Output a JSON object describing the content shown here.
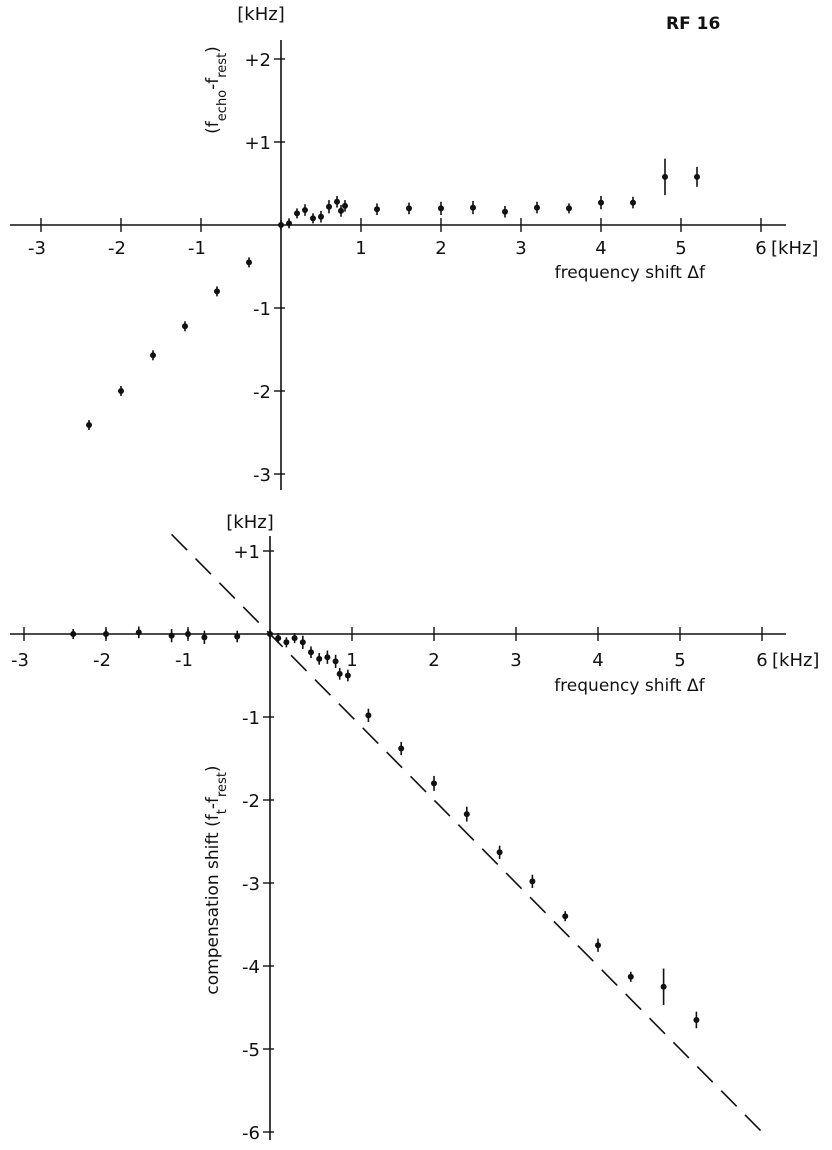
{
  "figure_label": "RF 16",
  "chart_data": [
    {
      "type": "scatter",
      "xlabel": "frequency shift Δf",
      "x_unit": "[kHz]",
      "ylabel": "(f_echo - f_rest)",
      "ylabel_parts": {
        "open": "(f",
        "sub1": "echo",
        "mid": "-f",
        "sub2": "rest",
        "close": ")"
      },
      "y_unit": "[kHz]",
      "xlim": [
        -3,
        6
      ],
      "ylim": [
        -3,
        2.3
      ],
      "x_ticks": [
        {
          "value": -3,
          "label": "-3"
        },
        {
          "value": -2,
          "label": "-2"
        },
        {
          "value": -1,
          "label": "-1"
        },
        {
          "value": 1,
          "label": "1"
        },
        {
          "value": 2,
          "label": "2"
        },
        {
          "value": 3,
          "label": "3"
        },
        {
          "value": 4,
          "label": "4"
        },
        {
          "value": 5,
          "label": "5"
        },
        {
          "value": 6,
          "label": "6"
        }
      ],
      "y_ticks": [
        {
          "value": 2,
          "label": "+2"
        },
        {
          "value": 1,
          "label": "+1"
        },
        {
          "value": -1,
          "label": "-1"
        },
        {
          "value": -2,
          "label": "-2"
        },
        {
          "value": -3,
          "label": "-3"
        }
      ],
      "points": [
        {
          "x": -2.4,
          "y": -2.41,
          "err": 0.04
        },
        {
          "x": -2.0,
          "y": -2.0,
          "err": 0.04
        },
        {
          "x": -1.6,
          "y": -1.57,
          "err": 0.04
        },
        {
          "x": -1.2,
          "y": -1.22,
          "err": 0.06
        },
        {
          "x": -0.8,
          "y": -0.8,
          "err": 0.05
        },
        {
          "x": -0.4,
          "y": -0.45,
          "err": 0.04
        },
        {
          "x": 0.0,
          "y": 0.0,
          "err": 0.03
        },
        {
          "x": 0.1,
          "y": 0.02,
          "err": 0.03
        },
        {
          "x": 0.2,
          "y": 0.14,
          "err": 0.05
        },
        {
          "x": 0.3,
          "y": 0.18,
          "err": 0.07
        },
        {
          "x": 0.4,
          "y": 0.08,
          "err": 0.06
        },
        {
          "x": 0.5,
          "y": 0.1,
          "err": 0.07
        },
        {
          "x": 0.6,
          "y": 0.22,
          "err": 0.08
        },
        {
          "x": 0.7,
          "y": 0.28,
          "err": 0.07
        },
        {
          "x": 0.75,
          "y": 0.17,
          "err": 0.07
        },
        {
          "x": 0.8,
          "y": 0.23,
          "err": 0.07
        },
        {
          "x": 1.2,
          "y": 0.19,
          "err": 0.07
        },
        {
          "x": 1.6,
          "y": 0.2,
          "err": 0.07
        },
        {
          "x": 2.0,
          "y": 0.2,
          "err": 0.08
        },
        {
          "x": 2.4,
          "y": 0.21,
          "err": 0.08
        },
        {
          "x": 2.8,
          "y": 0.16,
          "err": 0.07
        },
        {
          "x": 3.2,
          "y": 0.21,
          "err": 0.07
        },
        {
          "x": 3.6,
          "y": 0.2,
          "err": 0.06
        },
        {
          "x": 4.0,
          "y": 0.27,
          "err": 0.08
        },
        {
          "x": 4.4,
          "y": 0.27,
          "err": 0.07
        },
        {
          "x": 4.8,
          "y": 0.58,
          "err": 0.22
        },
        {
          "x": 5.2,
          "y": 0.58,
          "err": 0.12
        }
      ]
    },
    {
      "type": "scatter",
      "xlabel": "frequency shift Δf",
      "x_unit": "[kHz]",
      "ylabel": "compensation shift (f_t - f_rest)",
      "ylabel_parts": {
        "open": "compensation shift (f",
        "sub1": "t",
        "mid": "-f",
        "sub2": "rest",
        "close": ")"
      },
      "y_unit": "[kHz]",
      "xlim": [
        -3,
        6
      ],
      "ylim": [
        -6,
        1.2
      ],
      "x_ticks": [
        {
          "value": -3,
          "label": "-3"
        },
        {
          "value": -2,
          "label": "-2"
        },
        {
          "value": -1,
          "label": "-1"
        },
        {
          "value": 1,
          "label": "1"
        },
        {
          "value": 2,
          "label": "2"
        },
        {
          "value": 3,
          "label": "3"
        },
        {
          "value": 4,
          "label": "4"
        },
        {
          "value": 5,
          "label": "5"
        },
        {
          "value": 6,
          "label": "6"
        }
      ],
      "y_ticks": [
        {
          "value": 1,
          "label": "+1"
        },
        {
          "value": -1,
          "label": "-1"
        },
        {
          "value": -2,
          "label": "-2"
        },
        {
          "value": -3,
          "label": "-3"
        },
        {
          "value": -4,
          "label": "-4"
        },
        {
          "value": -5,
          "label": "-5"
        },
        {
          "value": -6,
          "label": "-6"
        }
      ],
      "reference_line": {
        "style": "dashed",
        "slope": -1,
        "intercept": 0,
        "x_from": -1.2,
        "x_to": 6.0
      },
      "points": [
        {
          "x": -2.4,
          "y": 0.0,
          "err": 0.06
        },
        {
          "x": -2.0,
          "y": 0.0,
          "err": 0.06
        },
        {
          "x": -1.6,
          "y": 0.02,
          "err": 0.07
        },
        {
          "x": -1.2,
          "y": -0.02,
          "err": 0.08
        },
        {
          "x": -1.0,
          "y": 0.0,
          "err": 0.06
        },
        {
          "x": -0.8,
          "y": -0.04,
          "err": 0.08
        },
        {
          "x": -0.4,
          "y": -0.03,
          "err": 0.07
        },
        {
          "x": 0.0,
          "y": 0.0,
          "err": 0.04
        },
        {
          "x": 0.1,
          "y": -0.05,
          "err": 0.04
        },
        {
          "x": 0.2,
          "y": -0.1,
          "err": 0.05
        },
        {
          "x": 0.3,
          "y": -0.05,
          "err": 0.05
        },
        {
          "x": 0.4,
          "y": -0.1,
          "err": 0.08
        },
        {
          "x": 0.5,
          "y": -0.22,
          "err": 0.07
        },
        {
          "x": 0.6,
          "y": -0.3,
          "err": 0.07
        },
        {
          "x": 0.7,
          "y": -0.28,
          "err": 0.08
        },
        {
          "x": 0.8,
          "y": -0.33,
          "err": 0.08
        },
        {
          "x": 0.85,
          "y": -0.48,
          "err": 0.07
        },
        {
          "x": 0.95,
          "y": -0.5,
          "err": 0.07
        },
        {
          "x": 1.2,
          "y": -0.98,
          "err": 0.08
        },
        {
          "x": 1.6,
          "y": -1.38,
          "err": 0.08
        },
        {
          "x": 2.0,
          "y": -1.8,
          "err": 0.09
        },
        {
          "x": 2.4,
          "y": -2.17,
          "err": 0.09
        },
        {
          "x": 2.8,
          "y": -2.63,
          "err": 0.08
        },
        {
          "x": 3.2,
          "y": -2.98,
          "err": 0.08
        },
        {
          "x": 3.6,
          "y": -3.4,
          "err": 0.06
        },
        {
          "x": 4.0,
          "y": -3.75,
          "err": 0.08
        },
        {
          "x": 4.4,
          "y": -4.13,
          "err": 0.06
        },
        {
          "x": 4.8,
          "y": -4.25,
          "err": 0.22
        },
        {
          "x": 5.2,
          "y": -4.65,
          "err": 0.1
        }
      ]
    }
  ]
}
